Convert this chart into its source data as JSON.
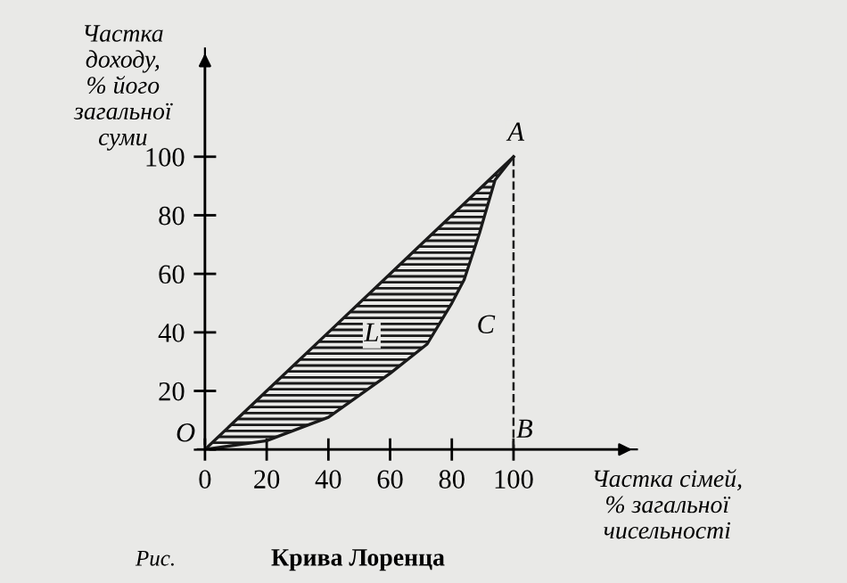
{
  "chart_data": {
    "type": "line",
    "title": "Крива Лоренца",
    "xlabel": "Частка сімей,\n% загальної\nчисельності",
    "ylabel": "Частка\nдоходу,\n% його\nзагальної\nсуми",
    "x": [
      0,
      20,
      40,
      60,
      72,
      80,
      84,
      89,
      94,
      100
    ],
    "series": [
      {
        "color": "#1a1a1a",
        "values": [
          0,
          20,
          40,
          60,
          72,
          80,
          84,
          89,
          94,
          100
        ],
        "lower": [
          0,
          3,
          11,
          26,
          36,
          50,
          58,
          74,
          92,
          100
        ],
        "upper": [
          0,
          20,
          40,
          60,
          72,
          80,
          84,
          89,
          94,
          100
        ]
      }
    ],
    "xlim": [
      0,
      140
    ],
    "ylim": [
      0,
      137
    ],
    "xticks": [
      0,
      20,
      40,
      60,
      80,
      100
    ],
    "yticks": [
      {
        "value": 0,
        "label": null
      },
      20,
      40,
      60,
      80,
      100
    ],
    "ref_lines": [
      {
        "axis": "x",
        "value": 100,
        "line_style": "dashed",
        "color": "#1a1a1a"
      }
    ],
    "annotations": [
      "O",
      "A",
      "B",
      "L",
      "C",
      "Рис."
    ],
    "grid": false,
    "legend": false,
    "marker": "none",
    "line_style": "solid"
  }
}
